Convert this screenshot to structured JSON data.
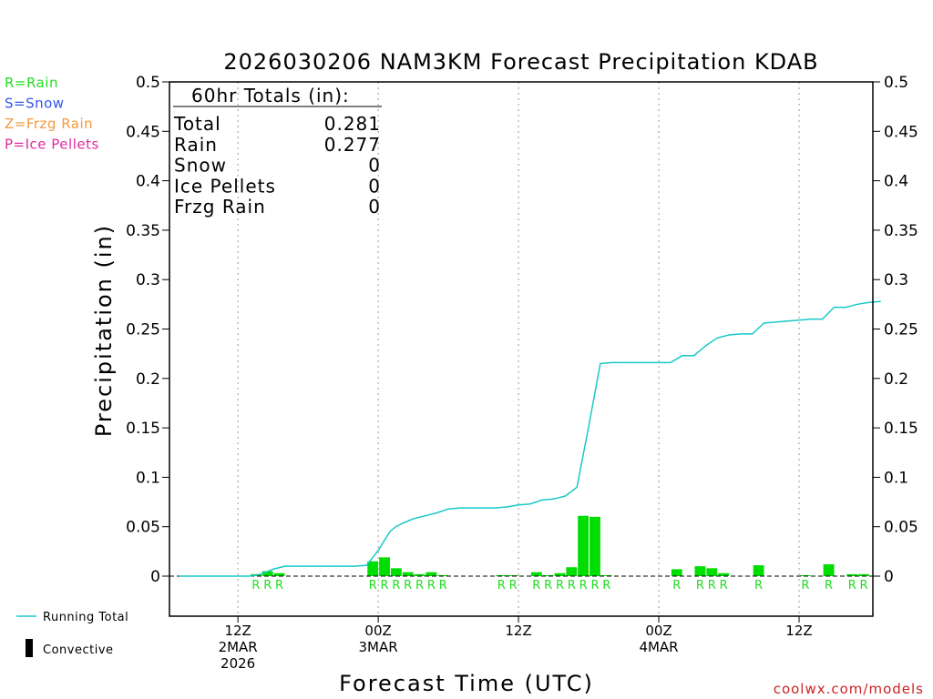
{
  "chart_data": {
    "type": "bar",
    "title": "2026030206 NAM3KM Forecast Precipitation KDAB",
    "ylabel": "Precipitation (in)",
    "xlabel": "Forecast Time (UTC)",
    "ylim": [
      -0.04,
      0.5
    ],
    "y_ticks": [
      "0.5",
      "0.45",
      "0.4",
      "0.35",
      "0.3",
      "0.25",
      "0.2",
      "0.15",
      "0.1",
      "0.05",
      "0"
    ],
    "x_range_hours": [
      0,
      60
    ],
    "x_ticks": [
      {
        "hour": 5,
        "line1": "12Z",
        "line2": "2MAR",
        "line3": "2026"
      },
      {
        "hour": 17,
        "line1": "00Z",
        "line2": "3MAR",
        "line3": ""
      },
      {
        "hour": 29,
        "line1": "12Z",
        "line2": "",
        "line3": ""
      },
      {
        "hour": 41,
        "line1": "00Z",
        "line2": "4MAR",
        "line3": ""
      },
      {
        "hour": 53,
        "line1": "12Z",
        "line2": "",
        "line3": ""
      }
    ],
    "totals": {
      "header": "60hr Totals (in):",
      "rows": [
        {
          "label": "Total",
          "value": "0.281"
        },
        {
          "label": "Rain",
          "value": "0.277"
        },
        {
          "label": "Snow",
          "value": "0"
        },
        {
          "label": "Ice Pellets",
          "value": "0"
        },
        {
          "label": "Frzg Rain",
          "value": "0"
        }
      ]
    },
    "ptype_legend": [
      {
        "text": "R=Rain",
        "color": "#22dd22"
      },
      {
        "text": "S=Snow",
        "color": "#3355ee"
      },
      {
        "text": "Z=Frzg Rain",
        "color": "#f39a3c"
      },
      {
        "text": "P=Ice Pellets",
        "color": "#e02aa0"
      }
    ],
    "series_legend": [
      {
        "name": "Running Total",
        "color": "#1ac8c8"
      },
      {
        "name": "Convective",
        "color": "#000000"
      }
    ],
    "bar_color": "#00dd00",
    "hourly_precip": [
      {
        "hour": 7,
        "value": 0.002,
        "ptype": "R"
      },
      {
        "hour": 8,
        "value": 0.005,
        "ptype": "R"
      },
      {
        "hour": 9,
        "value": 0.003,
        "ptype": "R"
      },
      {
        "hour": 17,
        "value": 0.015,
        "ptype": "R"
      },
      {
        "hour": 18,
        "value": 0.019,
        "ptype": "R"
      },
      {
        "hour": 19,
        "value": 0.008,
        "ptype": "R"
      },
      {
        "hour": 20,
        "value": 0.004,
        "ptype": "R"
      },
      {
        "hour": 21,
        "value": 0.002,
        "ptype": "R"
      },
      {
        "hour": 22,
        "value": 0.004,
        "ptype": "R"
      },
      {
        "hour": 23,
        "value": 0.001,
        "ptype": "R"
      },
      {
        "hour": 28,
        "value": 0.001,
        "ptype": "R"
      },
      {
        "hour": 29,
        "value": 0.0005,
        "ptype": "R"
      },
      {
        "hour": 31,
        "value": 0.004,
        "ptype": "R"
      },
      {
        "hour": 32,
        "value": 0.001,
        "ptype": "R"
      },
      {
        "hour": 33,
        "value": 0.003,
        "ptype": "R"
      },
      {
        "hour": 34,
        "value": 0.009,
        "ptype": "R"
      },
      {
        "hour": 35,
        "value": 0.061,
        "ptype": "R"
      },
      {
        "hour": 36,
        "value": 0.06,
        "ptype": "R"
      },
      {
        "hour": 37,
        "value": 0.0005,
        "ptype": "R"
      },
      {
        "hour": 43,
        "value": 0.007,
        "ptype": "R"
      },
      {
        "hour": 45,
        "value": 0.01,
        "ptype": "R"
      },
      {
        "hour": 46,
        "value": 0.008,
        "ptype": "R"
      },
      {
        "hour": 47,
        "value": 0.003,
        "ptype": "R"
      },
      {
        "hour": 50,
        "value": 0.011,
        "ptype": "R"
      },
      {
        "hour": 54,
        "value": 0.0005,
        "ptype": "R"
      },
      {
        "hour": 56,
        "value": 0.012,
        "ptype": "R"
      },
      {
        "hour": 58,
        "value": 0.002,
        "ptype": "R"
      },
      {
        "hour": 59,
        "value": 0.002,
        "ptype": "R"
      }
    ],
    "running_total": [
      [
        0,
        0
      ],
      [
        6,
        0
      ],
      [
        7,
        0.002
      ],
      [
        8,
        0.007
      ],
      [
        9,
        0.01
      ],
      [
        10,
        0.01
      ],
      [
        11,
        0.01
      ],
      [
        12,
        0.01
      ],
      [
        13,
        0.01
      ],
      [
        14,
        0.01
      ],
      [
        15,
        0.01
      ],
      [
        16,
        0.011
      ],
      [
        17,
        0.026
      ],
      [
        18,
        0.045
      ],
      [
        18.5,
        0.05
      ],
      [
        19,
        0.053
      ],
      [
        20,
        0.058
      ],
      [
        21,
        0.061
      ],
      [
        22,
        0.064
      ],
      [
        23,
        0.068
      ],
      [
        24,
        0.069
      ],
      [
        25,
        0.069
      ],
      [
        26,
        0.069
      ],
      [
        27,
        0.069
      ],
      [
        28,
        0.07
      ],
      [
        29,
        0.072
      ],
      [
        30,
        0.073
      ],
      [
        31,
        0.077
      ],
      [
        32,
        0.078
      ],
      [
        33,
        0.081
      ],
      [
        34,
        0.09
      ],
      [
        35,
        0.151
      ],
      [
        36,
        0.215
      ],
      [
        37,
        0.216
      ],
      [
        38,
        0.216
      ],
      [
        39,
        0.216
      ],
      [
        40,
        0.216
      ],
      [
        41,
        0.216
      ],
      [
        42,
        0.216
      ],
      [
        43,
        0.223
      ],
      [
        44,
        0.223
      ],
      [
        45,
        0.233
      ],
      [
        46,
        0.241
      ],
      [
        47,
        0.244
      ],
      [
        48,
        0.245
      ],
      [
        49,
        0.245
      ],
      [
        50,
        0.256
      ],
      [
        51,
        0.257
      ],
      [
        52,
        0.258
      ],
      [
        53,
        0.259
      ],
      [
        54,
        0.26
      ],
      [
        55,
        0.26
      ],
      [
        56,
        0.272
      ],
      [
        57,
        0.272
      ],
      [
        58,
        0.275
      ],
      [
        59,
        0.277
      ],
      [
        60,
        0.278
      ]
    ]
  },
  "footer": {
    "credit": "coolwx.com/models"
  }
}
